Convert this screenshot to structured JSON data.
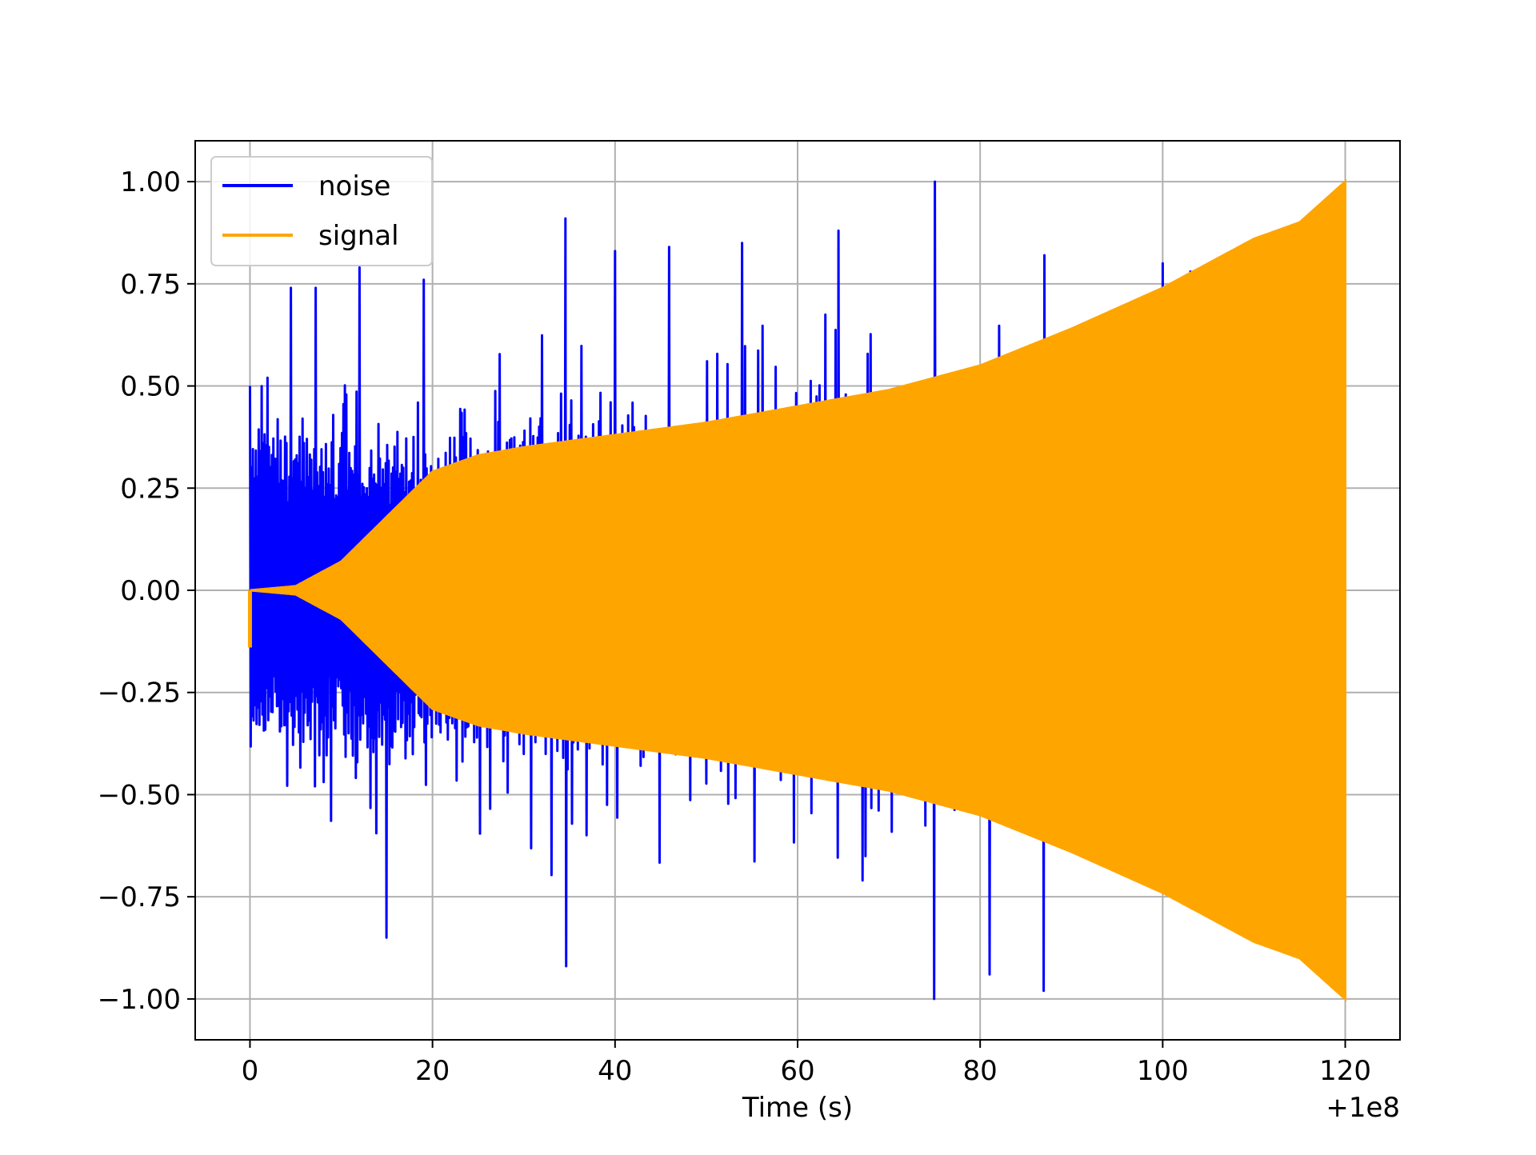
{
  "chart_data": {
    "type": "line",
    "xlabel": "Time (s)",
    "ylabel": "",
    "x_offset_label": "+1e8",
    "xlim": [
      -6,
      126
    ],
    "ylim": [
      -1.1,
      1.1
    ],
    "grid": true,
    "legend_position": "upper-left",
    "x_ticks": [
      0,
      20,
      40,
      60,
      80,
      100,
      120
    ],
    "x_tick_labels": [
      "0",
      "20",
      "40",
      "60",
      "80",
      "100",
      "120"
    ],
    "y_ticks": [
      1.0,
      0.75,
      0.5,
      0.25,
      0.0,
      -0.25,
      -0.5,
      -0.75,
      -1.0
    ],
    "y_tick_labels": [
      "1.00",
      "0.75",
      "0.50",
      "0.25",
      "0.00",
      "−0.25",
      "−0.50",
      "−0.75",
      "−1.00"
    ],
    "series": [
      {
        "name": "noise",
        "color": "#0000ff",
        "style": "dense random noise, normalized to peak 1.00",
        "spikes": [
          {
            "x": 0.0,
            "y": 0.5
          },
          {
            "x": 2.0,
            "y": 0.52
          },
          {
            "x": 4.5,
            "y": 0.74
          },
          {
            "x": 7.2,
            "y": 0.74
          },
          {
            "x": 12.0,
            "y": 0.79
          },
          {
            "x": 15.0,
            "y": -0.85
          },
          {
            "x": 19.0,
            "y": 0.76
          },
          {
            "x": 34.5,
            "y": 0.91
          },
          {
            "x": 34.6,
            "y": -0.92
          },
          {
            "x": 40.0,
            "y": 0.83
          },
          {
            "x": 46.0,
            "y": 0.84
          },
          {
            "x": 54.0,
            "y": 0.85
          },
          {
            "x": 64.5,
            "y": 0.88
          },
          {
            "x": 75.0,
            "y": 1.0
          },
          {
            "x": 75.0,
            "y": -1.0
          },
          {
            "x": 81.0,
            "y": -0.94
          },
          {
            "x": 87.0,
            "y": 0.82
          },
          {
            "x": 87.0,
            "y": -0.98
          },
          {
            "x": 100.0,
            "y": 0.8
          },
          {
            "x": 103.0,
            "y": 0.78
          }
        ]
      },
      {
        "name": "signal",
        "color": "#ffa500",
        "style": "chirp with growing amplitude envelope",
        "envelope": [
          {
            "x": 0.0,
            "y": 0.0
          },
          {
            "x": 5.0,
            "y": 0.01
          },
          {
            "x": 10.0,
            "y": 0.07
          },
          {
            "x": 15.0,
            "y": 0.18
          },
          {
            "x": 20.0,
            "y": 0.29
          },
          {
            "x": 25.0,
            "y": 0.33
          },
          {
            "x": 30.0,
            "y": 0.35
          },
          {
            "x": 40.0,
            "y": 0.38
          },
          {
            "x": 50.0,
            "y": 0.41
          },
          {
            "x": 60.0,
            "y": 0.45
          },
          {
            "x": 70.0,
            "y": 0.49
          },
          {
            "x": 80.0,
            "y": 0.55
          },
          {
            "x": 90.0,
            "y": 0.64
          },
          {
            "x": 100.0,
            "y": 0.74
          },
          {
            "x": 110.0,
            "y": 0.86
          },
          {
            "x": 115.0,
            "y": 0.9
          },
          {
            "x": 120.0,
            "y": 1.0
          }
        ]
      }
    ]
  }
}
